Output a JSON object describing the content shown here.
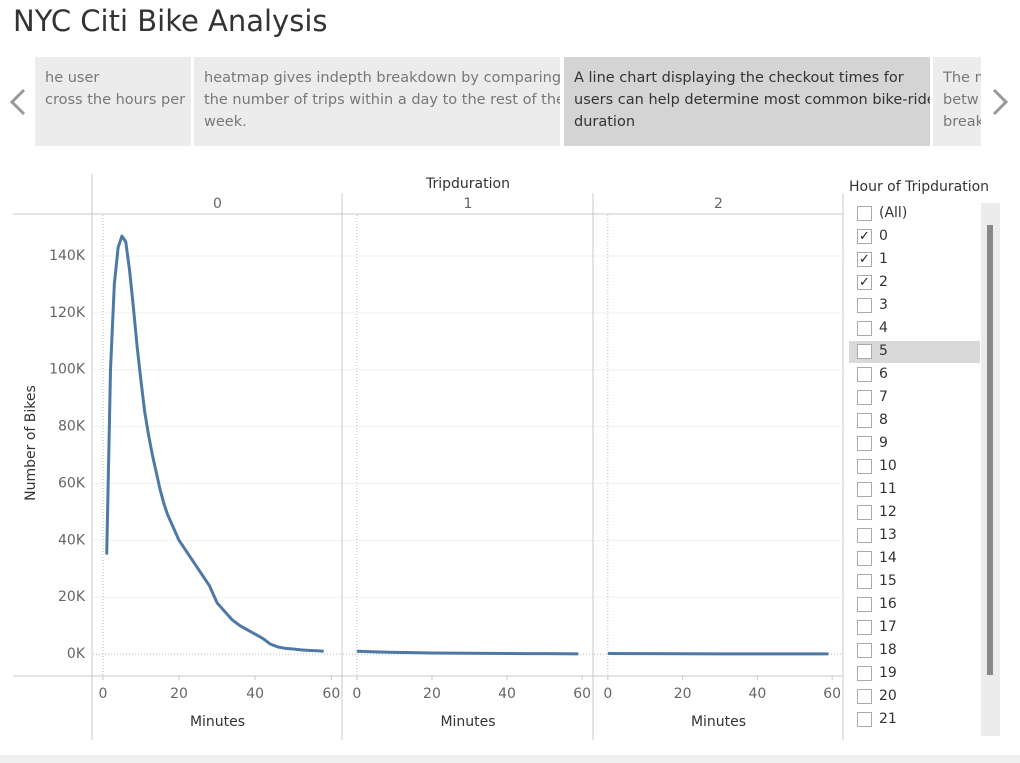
{
  "header": {
    "title": "NYC Citi Bike Analysis"
  },
  "story_points": [
    {
      "lines": [
        "he user",
        "cross the hours per"
      ],
      "selected": false
    },
    {
      "lines": [
        "heatmap gives indepth breakdown by comparing",
        "the number of trips within a day to the rest of the",
        "week."
      ],
      "selected": false
    },
    {
      "lines": [
        "A line chart displaying the checkout times for",
        "users can help determine most common bike-ride",
        "duration"
      ],
      "selected": true
    },
    {
      "lines": [
        "The n",
        "betw",
        "break"
      ],
      "selected": false
    }
  ],
  "chart_data": [
    {
      "type": "line",
      "facet_title": "Tripduration",
      "panel": "0",
      "y_label": "Number of Bikes",
      "x_label": "Minutes",
      "color": "#4e79a7",
      "x": [
        1,
        2,
        3,
        4,
        5,
        6,
        7,
        8,
        9,
        10,
        11,
        12,
        13,
        14,
        15,
        16,
        17,
        18,
        19,
        20,
        22,
        24,
        26,
        28,
        30,
        32,
        34,
        36,
        38,
        40,
        42,
        44,
        46,
        48,
        50,
        52,
        54,
        56,
        58
      ],
      "values": [
        35000,
        100000,
        130000,
        143000,
        147000,
        145000,
        135000,
        122000,
        108000,
        96000,
        85000,
        77000,
        70000,
        64000,
        58000,
        53000,
        49000,
        46000,
        43000,
        40000,
        36000,
        32000,
        28000,
        24000,
        18000,
        15000,
        12000,
        10000,
        8500,
        7000,
        5500,
        3500,
        2500,
        2000,
        1800,
        1500,
        1300,
        1200,
        1000
      ],
      "xlim": [
        -2.6,
        62.8
      ],
      "xticks": [
        0,
        20,
        40,
        60
      ],
      "ylim": [
        -7700,
        154400
      ],
      "yticks": [
        {
          "value": 0,
          "label": "0K"
        },
        {
          "value": 20000,
          "label": "20K"
        },
        {
          "value": 40000,
          "label": "40K"
        },
        {
          "value": 60000,
          "label": "60K"
        },
        {
          "value": 80000,
          "label": "80K"
        },
        {
          "value": 100000,
          "label": "100K"
        },
        {
          "value": 120000,
          "label": "120K"
        },
        {
          "value": 140000,
          "label": "140K"
        }
      ]
    },
    {
      "type": "line",
      "panel": "1",
      "x_label": "Minutes",
      "color": "#4e79a7",
      "x": [
        0,
        5,
        10,
        15,
        20,
        25,
        30,
        35,
        40,
        45,
        50,
        55,
        59
      ],
      "values": [
        1000,
        800,
        600,
        500,
        400,
        350,
        300,
        250,
        200,
        180,
        150,
        120,
        100
      ],
      "xlim": [
        -3.7,
        62.9
      ],
      "xticks": [
        0,
        20,
        40,
        60
      ],
      "ylim": [
        -7700,
        154400
      ]
    },
    {
      "type": "line",
      "panel": "2",
      "x_label": "Minutes",
      "color": "#4e79a7",
      "x": [
        0,
        10,
        20,
        30,
        40,
        50,
        59
      ],
      "values": [
        200,
        150,
        120,
        100,
        90,
        80,
        70
      ],
      "xlim": [
        -3.7,
        62.9
      ],
      "xticks": [
        0,
        20,
        40,
        60
      ],
      "ylim": [
        -7700,
        154400
      ]
    }
  ],
  "filter": {
    "title": "Hour of Tripduration",
    "items": [
      {
        "label": "(All)",
        "checked": false
      },
      {
        "label": "0",
        "checked": true
      },
      {
        "label": "1",
        "checked": true
      },
      {
        "label": "2",
        "checked": true
      },
      {
        "label": "3",
        "checked": false
      },
      {
        "label": "4",
        "checked": false
      },
      {
        "label": "5",
        "checked": false,
        "hovered": true
      },
      {
        "label": "6",
        "checked": false
      },
      {
        "label": "7",
        "checked": false
      },
      {
        "label": "8",
        "checked": false
      },
      {
        "label": "9",
        "checked": false
      },
      {
        "label": "10",
        "checked": false
      },
      {
        "label": "11",
        "checked": false
      },
      {
        "label": "12",
        "checked": false
      },
      {
        "label": "13",
        "checked": false
      },
      {
        "label": "14",
        "checked": false
      },
      {
        "label": "15",
        "checked": false
      },
      {
        "label": "16",
        "checked": false
      },
      {
        "label": "17",
        "checked": false
      },
      {
        "label": "18",
        "checked": false
      },
      {
        "label": "19",
        "checked": false
      },
      {
        "label": "20",
        "checked": false
      },
      {
        "label": "21",
        "checked": false
      }
    ]
  }
}
